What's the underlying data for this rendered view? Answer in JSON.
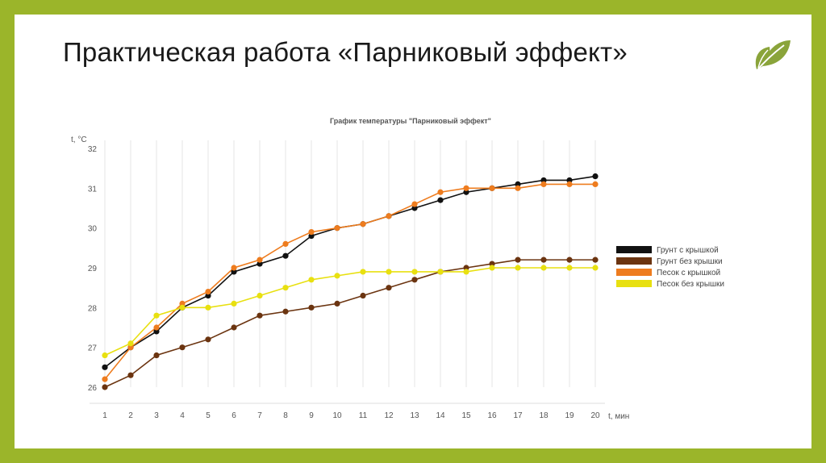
{
  "slide": {
    "title": "Практическая работа «Парниковый эффект»",
    "leaf_icon": "leaf-icon",
    "colors": {
      "border": "#9bb52a",
      "leaf": "#8aa43a"
    }
  },
  "chart_data": {
    "type": "line",
    "title": "График температуры \"Парниковый эффект\"",
    "xlabel": "t, мин",
    "ylabel": "t, °C",
    "xlim": [
      1,
      20
    ],
    "ylim": [
      26,
      32
    ],
    "grid": "vertical",
    "legend_position": "right",
    "x": [
      1,
      2,
      3,
      4,
      5,
      6,
      7,
      8,
      9,
      10,
      11,
      12,
      13,
      14,
      15,
      16,
      17,
      18,
      19,
      20
    ],
    "x_ticks": [
      "1",
      "2",
      "3",
      "4",
      "5",
      "6",
      "7",
      "8",
      "9",
      "10",
      "11",
      "12",
      "13",
      "14",
      "15",
      "16",
      "17",
      "18",
      "19",
      "20"
    ],
    "y_ticks": [
      "26",
      "27",
      "28",
      "29",
      "30",
      "31",
      "32"
    ],
    "series": [
      {
        "name": "Грунт с крышкой",
        "color": "#111111",
        "values": [
          26.5,
          27.0,
          27.4,
          28.0,
          28.3,
          28.9,
          29.1,
          29.3,
          29.8,
          30.0,
          30.1,
          30.3,
          30.5,
          30.7,
          30.9,
          31.0,
          31.1,
          31.2,
          31.2,
          31.3
        ]
      },
      {
        "name": "Грунт без крышки",
        "color": "#6b3410",
        "values": [
          26.0,
          26.3,
          26.8,
          27.0,
          27.2,
          27.5,
          27.8,
          27.9,
          28.0,
          28.1,
          28.3,
          28.5,
          28.7,
          28.9,
          29.0,
          29.1,
          29.2,
          29.2,
          29.2,
          29.2
        ]
      },
      {
        "name": "Песок с крышкой",
        "color": "#ee7c1e",
        "values": [
          26.2,
          27.0,
          27.5,
          28.1,
          28.4,
          29.0,
          29.2,
          29.6,
          29.9,
          30.0,
          30.1,
          30.3,
          30.6,
          30.9,
          31.0,
          31.0,
          31.0,
          31.1,
          31.1,
          31.1
        ]
      },
      {
        "name": "Песок без крышки",
        "color": "#e8e010",
        "values": [
          26.8,
          27.1,
          27.8,
          28.0,
          28.0,
          28.1,
          28.3,
          28.5,
          28.7,
          28.8,
          28.9,
          28.9,
          28.9,
          28.9,
          28.9,
          29.0,
          29.0,
          29.0,
          29.0,
          29.0
        ]
      }
    ]
  }
}
